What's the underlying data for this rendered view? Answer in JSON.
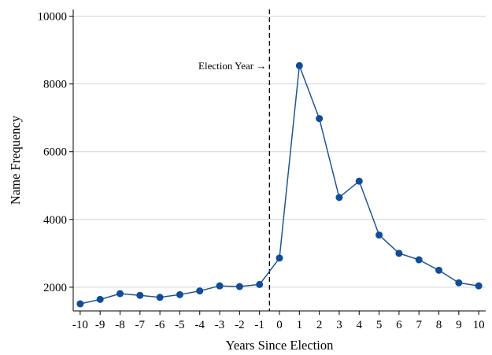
{
  "chart_data": {
    "type": "line",
    "xlabel": "Years Since Election",
    "ylabel": "Name Frequency",
    "x": [
      -10,
      -9,
      -8,
      -7,
      -6,
      -5,
      -4,
      -3,
      -2,
      -1,
      0,
      1,
      2,
      3,
      4,
      5,
      6,
      7,
      8,
      9,
      10
    ],
    "series": [
      {
        "values": [
          1510,
          1640,
          1810,
          1760,
          1700,
          1780,
          1890,
          2040,
          2020,
          2080,
          2860,
          8540,
          6980,
          4650,
          5130,
          3540,
          3000,
          2810,
          2500,
          2130,
          2040
        ]
      }
    ],
    "ylim": [
      1300,
      10200
    ],
    "xlim": [
      -10.35,
      10.35
    ],
    "yticks": [
      2000,
      4000,
      6000,
      8000,
      10000
    ],
    "ytick_labels": [
      "2000",
      "4000",
      "6000",
      "8000",
      "10000"
    ],
    "xtick_labels": [
      "-10",
      "-9",
      "-8",
      "-7",
      "-6",
      "-5",
      "-4",
      "-3",
      "-2",
      "-1",
      "0",
      "1",
      "2",
      "3",
      "4",
      "5",
      "6",
      "7",
      "8",
      "9",
      "10"
    ],
    "grid": "horizontal",
    "reference_line": {
      "x": -0.5,
      "style": "dashed"
    },
    "annotation": {
      "text": "Election Year →"
    },
    "colors": {
      "series": "#1f5596",
      "marker": "#0f4c99",
      "grid": "#d4d4d4",
      "axis": "#000000"
    }
  }
}
